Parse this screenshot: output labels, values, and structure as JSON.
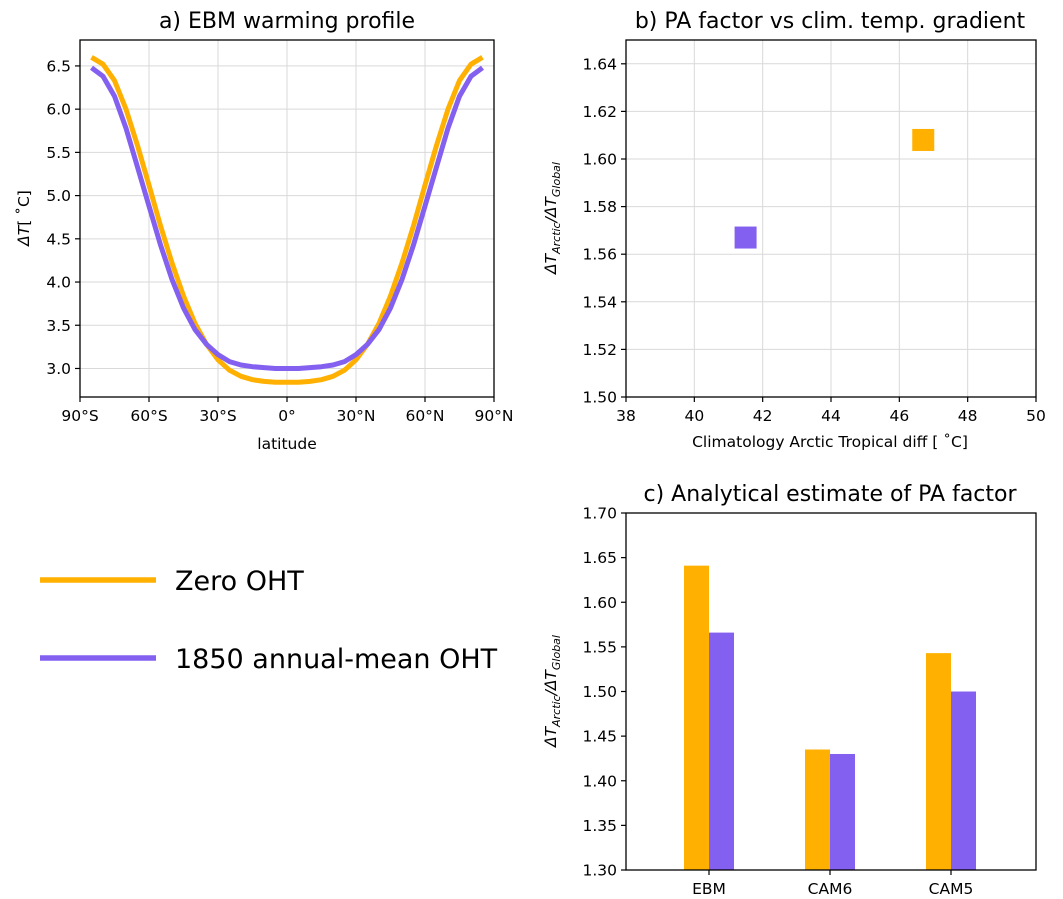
{
  "colors": {
    "zero": "#FFB000",
    "oht": "#8460F0"
  },
  "legend": {
    "entries": [
      {
        "label": "Zero OHT",
        "color": "#FFB000"
      },
      {
        "label": "1850 annual-mean OHT",
        "color": "#8460F0"
      }
    ]
  },
  "chart_data": [
    {
      "type": "line",
      "title": "a) EBM warming profile",
      "xlabel": "latitude",
      "ylabel_main": "ΔT",
      "ylabel_unit": "[ ˚C]",
      "xlim": [
        -90,
        90
      ],
      "ylim": [
        2.67,
        6.8
      ],
      "xticks": [
        -90,
        -60,
        -30,
        0,
        30,
        60,
        90
      ],
      "xticklabels": [
        "90°S",
        "60°S",
        "30°S",
        "0°",
        "30°N",
        "60°N",
        "90°N"
      ],
      "yticks": [
        3.0,
        3.5,
        4.0,
        4.5,
        5.0,
        5.5,
        6.0,
        6.5
      ],
      "yticklabels": [
        "3.0",
        "3.5",
        "4.0",
        "4.5",
        "5.0",
        "5.5",
        "6.0",
        "6.5"
      ],
      "grid": true,
      "x": [
        -85,
        -80,
        -75,
        -70,
        -65,
        -60,
        -55,
        -50,
        -45,
        -40,
        -35,
        -30,
        -25,
        -20,
        -15,
        -10,
        -5,
        0,
        5,
        10,
        15,
        20,
        25,
        30,
        35,
        40,
        45,
        50,
        55,
        60,
        65,
        70,
        75,
        80,
        85
      ],
      "series": [
        {
          "name": "Zero OHT",
          "color": "#FFB000",
          "values": [
            6.6,
            6.52,
            6.33,
            6.0,
            5.58,
            5.12,
            4.65,
            4.22,
            3.84,
            3.52,
            3.28,
            3.1,
            2.98,
            2.91,
            2.87,
            2.85,
            2.84,
            2.84,
            2.84,
            2.85,
            2.87,
            2.91,
            2.98,
            3.1,
            3.28,
            3.52,
            3.84,
            4.22,
            4.65,
            5.12,
            5.58,
            6.0,
            6.33,
            6.52,
            6.6
          ]
        },
        {
          "name": "1850 annual-mean OHT",
          "color": "#8460F0",
          "values": [
            6.48,
            6.38,
            6.15,
            5.78,
            5.33,
            4.88,
            4.43,
            4.03,
            3.7,
            3.45,
            3.28,
            3.16,
            3.08,
            3.04,
            3.02,
            3.01,
            3.0,
            3.0,
            3.0,
            3.01,
            3.02,
            3.04,
            3.08,
            3.16,
            3.28,
            3.45,
            3.7,
            4.03,
            4.43,
            4.88,
            5.33,
            5.78,
            6.15,
            6.38,
            6.48
          ]
        }
      ]
    },
    {
      "type": "scatter",
      "title": "b) PA factor vs clim. temp. gradient",
      "xlabel": "Climatology Arctic Tropical diff [ ˚C]",
      "ylabel_main": "ΔT",
      "ylabel_sub1": "Arctic",
      "ylabel_mid": "/ΔT",
      "ylabel_sub2": "Global",
      "xlim": [
        38,
        50
      ],
      "ylim": [
        1.5,
        1.65
      ],
      "xticks": [
        38,
        40,
        42,
        44,
        46,
        48,
        50
      ],
      "xticklabels": [
        "38",
        "40",
        "42",
        "44",
        "46",
        "48",
        "50"
      ],
      "yticks": [
        1.5,
        1.52,
        1.54,
        1.56,
        1.58,
        1.6,
        1.62,
        1.64
      ],
      "yticklabels": [
        "1.50",
        "1.52",
        "1.54",
        "1.56",
        "1.58",
        "1.60",
        "1.62",
        "1.64"
      ],
      "grid": true,
      "points": [
        {
          "series": "Zero OHT",
          "x": 46.7,
          "y": 1.608,
          "color": "#FFB000"
        },
        {
          "series": "1850 annual-mean OHT",
          "x": 41.5,
          "y": 1.567,
          "color": "#8460F0"
        }
      ]
    },
    {
      "type": "bar",
      "title": "c) Analytical estimate of PA factor",
      "ylabel_main": "ΔT",
      "ylabel_sub1": "Arctic",
      "ylabel_mid": "/ΔT",
      "ylabel_sub2": "Global",
      "categories": [
        "EBM",
        "CAM6",
        "CAM5"
      ],
      "ylim": [
        1.3,
        1.7
      ],
      "yticks": [
        1.3,
        1.35,
        1.4,
        1.45,
        1.5,
        1.55,
        1.6,
        1.65,
        1.7
      ],
      "yticklabels": [
        "1.30",
        "1.35",
        "1.40",
        "1.45",
        "1.50",
        "1.55",
        "1.60",
        "1.65",
        "1.70"
      ],
      "grid": false,
      "series": [
        {
          "name": "Zero OHT",
          "color": "#FFB000",
          "values": [
            1.641,
            1.435,
            1.543
          ]
        },
        {
          "name": "1850 annual-mean OHT",
          "color": "#8460F0",
          "values": [
            1.566,
            1.43,
            1.5
          ]
        }
      ]
    }
  ]
}
